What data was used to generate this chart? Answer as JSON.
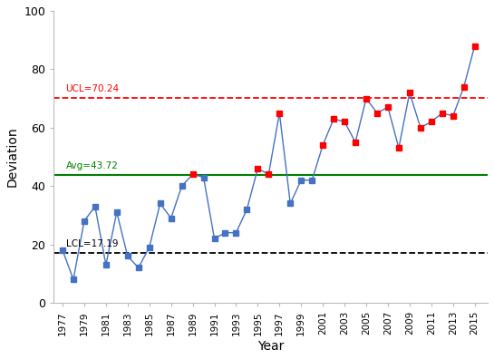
{
  "years": [
    1977,
    1978,
    1979,
    1980,
    1981,
    1982,
    1983,
    1984,
    1985,
    1986,
    1987,
    1988,
    1989,
    1990,
    1991,
    1992,
    1993,
    1994,
    1995,
    1996,
    1997,
    1998,
    1999,
    2000,
    2001,
    2002,
    2003,
    2004,
    2005,
    2006,
    2007,
    2008,
    2009,
    2010,
    2011,
    2012,
    2013,
    2014,
    2015
  ],
  "values": [
    18,
    8,
    28,
    33,
    13,
    31,
    16,
    12,
    19,
    34,
    29,
    40,
    44,
    43,
    22,
    24,
    24,
    32,
    46,
    44,
    65,
    34,
    42,
    42,
    54,
    63,
    62,
    55,
    70,
    65,
    67,
    53,
    72,
    60,
    62,
    65,
    64,
    74,
    88
  ],
  "ucl": 70.24,
  "avg": 43.72,
  "lcl": 17.19,
  "xlabel": "Year",
  "ylabel": "Deviation",
  "ylim": [
    0,
    100
  ],
  "line_color": "#4472C4",
  "above_color": "#FF0000",
  "below_color": "#4472C4",
  "ucl_color": "#FF0000",
  "avg_color": "#008000",
  "lcl_color": "#000000",
  "background_color": "#FFFFFF",
  "ucl_label": "UCL=70.24",
  "avg_label": "Avg=43.72",
  "lcl_label": "LCL=17.19"
}
